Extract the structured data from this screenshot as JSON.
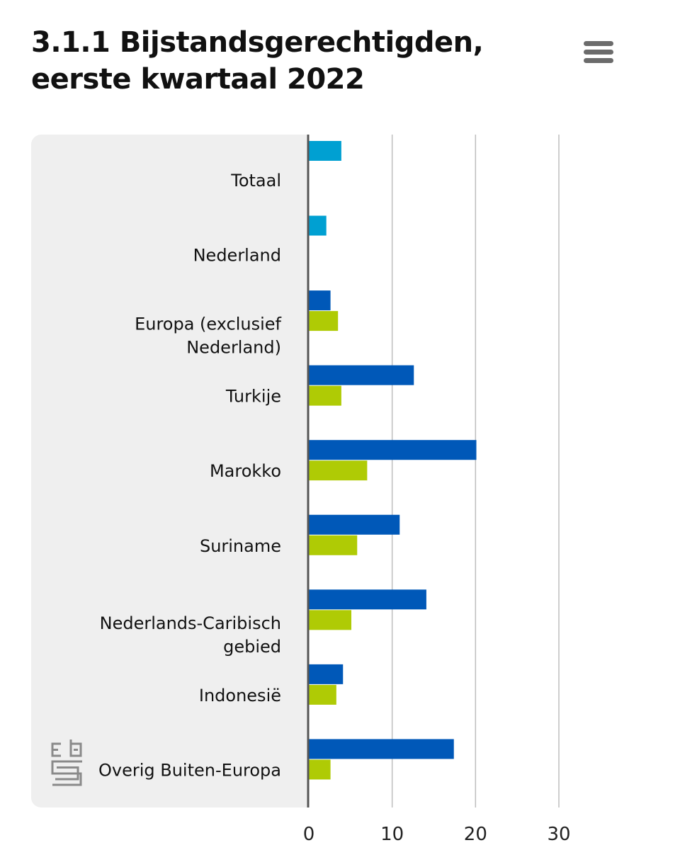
{
  "header": {
    "title_line1": "3.1.1 Bijstandsgerechtigden,",
    "title_line2": "eerste kwartaal 2022",
    "menu_icon": "hamburger-menu-icon"
  },
  "logo": {
    "icon": "cbs-logo-icon"
  },
  "colors": {
    "total": "#00a0d2",
    "first_generation": "#0058b8",
    "second_generation": "#afcb05",
    "panel": "#efefef",
    "grid": "#bdbdbd",
    "axis": "#555555"
  },
  "chart_data": {
    "type": "bar",
    "orientation": "horizontal",
    "title": "3.1.1 Bijstandsgerechtigden, eerste kwartaal 2022",
    "categories": [
      [
        "Totaal"
      ],
      [
        "Nederland"
      ],
      [
        "Europa (exclusief",
        "Nederland)"
      ],
      [
        "Turkije"
      ],
      [
        "Marokko"
      ],
      [
        "Suriname"
      ],
      [
        "Nederlands-Caribisch",
        "gebied"
      ],
      [
        "Indonesië"
      ],
      [
        "Overig Buiten-Europa"
      ]
    ],
    "series": [
      {
        "color": "#00a0d2",
        "values": [
          3.9,
          2.1,
          null,
          null,
          null,
          null,
          null,
          null,
          null
        ]
      },
      {
        "color": "#0058b8",
        "values": [
          null,
          null,
          2.6,
          12.6,
          20.1,
          10.9,
          14.1,
          4.1,
          17.4
        ]
      },
      {
        "color": "#afcb05",
        "values": [
          null,
          null,
          3.5,
          3.9,
          7.0,
          5.8,
          5.1,
          3.3,
          2.6
        ]
      }
    ],
    "xlim": [
      0,
      30
    ],
    "x_ticks": [
      0,
      10,
      20,
      30
    ],
    "grid": true,
    "legend": "none"
  }
}
